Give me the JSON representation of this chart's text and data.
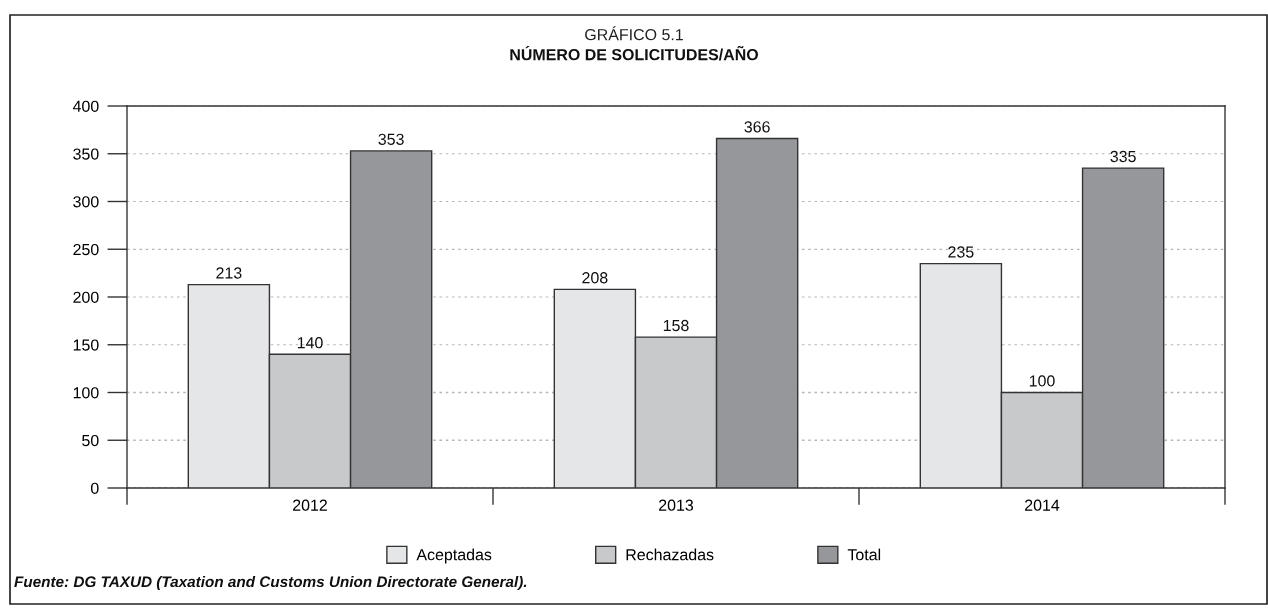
{
  "chart_data": {
    "type": "bar",
    "title": "GRÁFICO 5.1",
    "subtitle": "NÚMERO DE SOLICITUDES/AÑO",
    "categories": [
      "2012",
      "2013",
      "2014"
    ],
    "series": [
      {
        "name": "Aceptadas",
        "color": "#e5e6e8",
        "values": [
          213,
          208,
          235
        ]
      },
      {
        "name": "Rechazadas",
        "color": "#c8c9cb",
        "values": [
          140,
          158,
          100
        ]
      },
      {
        "name": "Total",
        "color": "#96979b",
        "values": [
          353,
          366,
          335
        ]
      }
    ],
    "ylim": [
      0,
      400
    ],
    "yticks": [
      0,
      50,
      100,
      150,
      200,
      250,
      300,
      350,
      400
    ],
    "grid": "y",
    "legend": "bottom",
    "data_labels": true,
    "annotations": [
      "Fuente: DG TAXUD (Taxation and Customs Union Directorate General)."
    ]
  }
}
